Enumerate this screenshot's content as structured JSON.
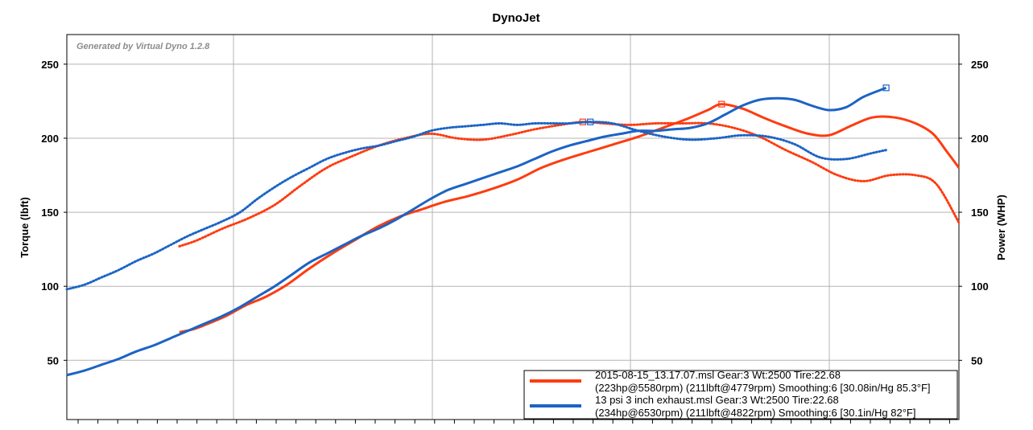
{
  "chart_data": {
    "type": "line",
    "title": "DynoJet",
    "watermark": "Generated by Virtual Dyno 1.2.8",
    "ylabel_left": "Torque (lbft)",
    "ylabel_right": "Power (WHP)",
    "ylim": [
      10,
      270
    ],
    "yticks": [
      50,
      100,
      150,
      200,
      250
    ],
    "xlim": [
      1800,
      6950
    ],
    "grid": true,
    "legend_position": "bottom-right",
    "series": [
      {
        "name": "2015-08-15_13.17.07.msl",
        "legend_line1": "2015-08-15_13.17.07.msl Gear:3 Wt:2500 Tire:22.68",
        "legend_line2": "(223hp@5580rpm) (211lbft@4779rpm) Smoothing:6 [30.08in/Hg 85.3°F]",
        "color": "#ff3b10",
        "power": {
          "x": [
            2450,
            2530,
            2620,
            2720,
            2830,
            2950,
            3070,
            3200,
            3330,
            3460,
            3590,
            3720,
            3850,
            3980,
            4120,
            4260,
            4400,
            4540,
            4680,
            4820,
            4960,
            5100,
            5240,
            5380,
            5500,
            5580,
            5700,
            5820,
            5950,
            6080,
            6200,
            6320,
            6450,
            6580,
            6700,
            6800,
            6880,
            6950
          ],
          "y": [
            69,
            71,
            75,
            80,
            87,
            93,
            101,
            112,
            122,
            131,
            140,
            147,
            152,
            157,
            161,
            166,
            172,
            180,
            186,
            191,
            196,
            201,
            207,
            213,
            219,
            223,
            220,
            214,
            208,
            203,
            202,
            208,
            214,
            214,
            210,
            203,
            191,
            180
          ],
          "peak": {
            "x": 5580,
            "y": 223
          }
        },
        "torque": {
          "x": [
            2450,
            2550,
            2700,
            2850,
            3000,
            3150,
            3300,
            3450,
            3600,
            3750,
            3900,
            4050,
            4200,
            4350,
            4500,
            4650,
            4779,
            4900,
            5050,
            5200,
            5350,
            5500,
            5650,
            5800,
            5950,
            6100,
            6250,
            6400,
            6550,
            6700,
            6820,
            6950
          ],
          "y": [
            127,
            131,
            139,
            146,
            155,
            168,
            180,
            188,
            195,
            200,
            203,
            200,
            199,
            202,
            206,
            209,
            211,
            210,
            209,
            210,
            210,
            210,
            207,
            201,
            192,
            184,
            175,
            171,
            175,
            175,
            169,
            143
          ],
          "peak": {
            "x": 4779,
            "y": 211
          }
        }
      },
      {
        "name": "13 psi 3 inch exhaust.msl",
        "legend_line1": "13 psi 3 inch exhaust.msl Gear:3 Wt:2500 Tire:22.68",
        "legend_line2": "(234hp@6530rpm) (211lbft@4822rpm) Smoothing:6 [30.1in/Hg 82°F]",
        "color": "#1b63c4",
        "power": {
          "x": [
            1800,
            1900,
            2000,
            2100,
            2200,
            2300,
            2400,
            2500,
            2600,
            2700,
            2800,
            2900,
            3000,
            3100,
            3200,
            3300,
            3400,
            3500,
            3600,
            3700,
            3800,
            3900,
            4000,
            4100,
            4200,
            4300,
            4400,
            4500,
            4600,
            4700,
            4800,
            4900,
            5000,
            5100,
            5200,
            5300,
            5400,
            5500,
            5600,
            5700,
            5800,
            5900,
            6000,
            6100,
            6200,
            6300,
            6400,
            6530
          ],
          "y": [
            40,
            43,
            47,
            51,
            56,
            60,
            65,
            70,
            75,
            80,
            86,
            93,
            100,
            108,
            116,
            122,
            128,
            134,
            139,
            145,
            152,
            159,
            165,
            169,
            173,
            177,
            181,
            186,
            191,
            195,
            198,
            201,
            203,
            205,
            205,
            206,
            207,
            210,
            216,
            222,
            226,
            227,
            226,
            222,
            219,
            221,
            228,
            234
          ],
          "peak": {
            "x": 6530,
            "y": 234
          }
        },
        "torque": {
          "x": [
            1800,
            1900,
            2000,
            2100,
            2200,
            2300,
            2400,
            2500,
            2600,
            2700,
            2800,
            2900,
            3000,
            3100,
            3200,
            3300,
            3400,
            3500,
            3600,
            3700,
            3800,
            3900,
            4000,
            4100,
            4200,
            4300,
            4400,
            4500,
            4600,
            4700,
            4822,
            4950,
            5100,
            5250,
            5400,
            5550,
            5700,
            5850,
            6000,
            6150,
            6300,
            6450,
            6530
          ],
          "y": [
            98,
            101,
            106,
            111,
            117,
            122,
            128,
            134,
            139,
            144,
            150,
            159,
            167,
            174,
            180,
            186,
            190,
            193,
            195,
            198,
            201,
            205,
            207,
            208,
            209,
            210,
            209,
            210,
            210,
            210,
            211,
            210,
            205,
            201,
            199,
            200,
            202,
            201,
            196,
            187,
            186,
            190,
            192
          ],
          "peak": {
            "x": 4822,
            "y": 211
          }
        }
      }
    ]
  }
}
